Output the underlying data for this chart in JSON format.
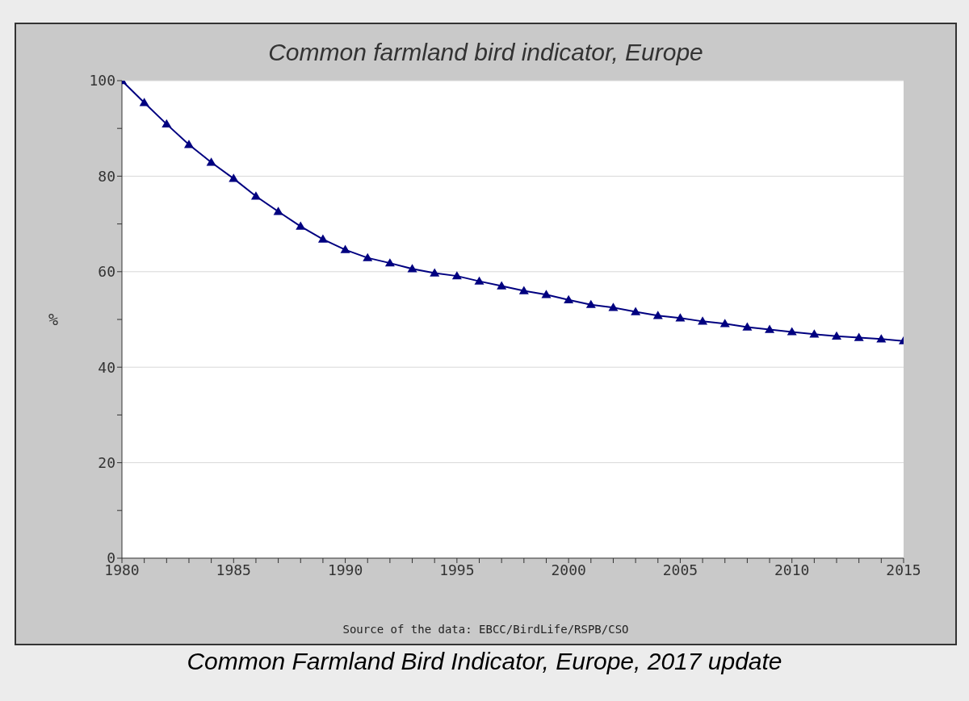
{
  "chart_data": {
    "type": "line",
    "title": "Common farmland bird indicator, Europe",
    "ylabel": "%",
    "annotations": [
      "Source of the data: EBCC/BirdLife/RSPB/CSO",
      "Common Farmland Bird Indicator, Europe, 2017 update"
    ],
    "x": [
      1980,
      1981,
      1982,
      1983,
      1984,
      1985,
      1986,
      1987,
      1988,
      1989,
      1990,
      1991,
      1992,
      1993,
      1994,
      1995,
      1996,
      1997,
      1998,
      1999,
      2000,
      2001,
      2002,
      2003,
      2004,
      2005,
      2006,
      2007,
      2008,
      2009,
      2010,
      2011,
      2012,
      2013,
      2014,
      2015
    ],
    "series": [
      {
        "color": "#000080",
        "values": [
          100,
          95.4,
          90.9,
          86.6,
          82.9,
          79.5,
          75.8,
          72.6,
          69.5,
          66.8,
          64.6,
          62.9,
          61.8,
          60.6,
          59.7,
          59.1,
          58.0,
          57.0,
          56.0,
          55.2,
          54.1,
          53.1,
          52.5,
          51.6,
          50.8,
          50.3,
          49.6,
          49.1,
          48.4,
          47.9,
          47.4,
          46.9,
          46.5,
          46.2,
          45.9,
          45.5
        ]
      }
    ],
    "xlim": [
      1980,
      2015
    ],
    "xticks": [
      1980,
      {
        "value": 1981,
        "label": null
      },
      {
        "value": 1982,
        "label": null
      },
      {
        "value": 1983,
        "label": null
      },
      {
        "value": 1984,
        "label": null
      },
      1985,
      {
        "value": 1986,
        "label": null
      },
      {
        "value": 1987,
        "label": null
      },
      {
        "value": 1988,
        "label": null
      },
      {
        "value": 1989,
        "label": null
      },
      1990,
      {
        "value": 1991,
        "label": null
      },
      {
        "value": 1992,
        "label": null
      },
      {
        "value": 1993,
        "label": null
      },
      {
        "value": 1994,
        "label": null
      },
      1995,
      {
        "value": 1996,
        "label": null
      },
      {
        "value": 1997,
        "label": null
      },
      {
        "value": 1998,
        "label": null
      },
      {
        "value": 1999,
        "label": null
      },
      2000,
      {
        "value": 2001,
        "label": null
      },
      {
        "value": 2002,
        "label": null
      },
      {
        "value": 2003,
        "label": null
      },
      {
        "value": 2004,
        "label": null
      },
      2005,
      {
        "value": 2006,
        "label": null
      },
      {
        "value": 2007,
        "label": null
      },
      {
        "value": 2008,
        "label": null
      },
      {
        "value": 2009,
        "label": null
      },
      2010,
      {
        "value": 2011,
        "label": null
      },
      {
        "value": 2012,
        "label": null
      },
      {
        "value": 2013,
        "label": null
      },
      {
        "value": 2014,
        "label": null
      },
      2015
    ],
    "ylim": [
      0,
      100
    ],
    "yticks": [
      0,
      {
        "value": 10,
        "label": null
      },
      20,
      {
        "value": 30,
        "label": null
      },
      40,
      {
        "value": 50,
        "label": null
      },
      60,
      {
        "value": 70,
        "label": null
      },
      80,
      {
        "value": 90,
        "label": null
      },
      100
    ],
    "grid": "y",
    "marker": "triangle",
    "line_style": "solid",
    "legend": false
  }
}
